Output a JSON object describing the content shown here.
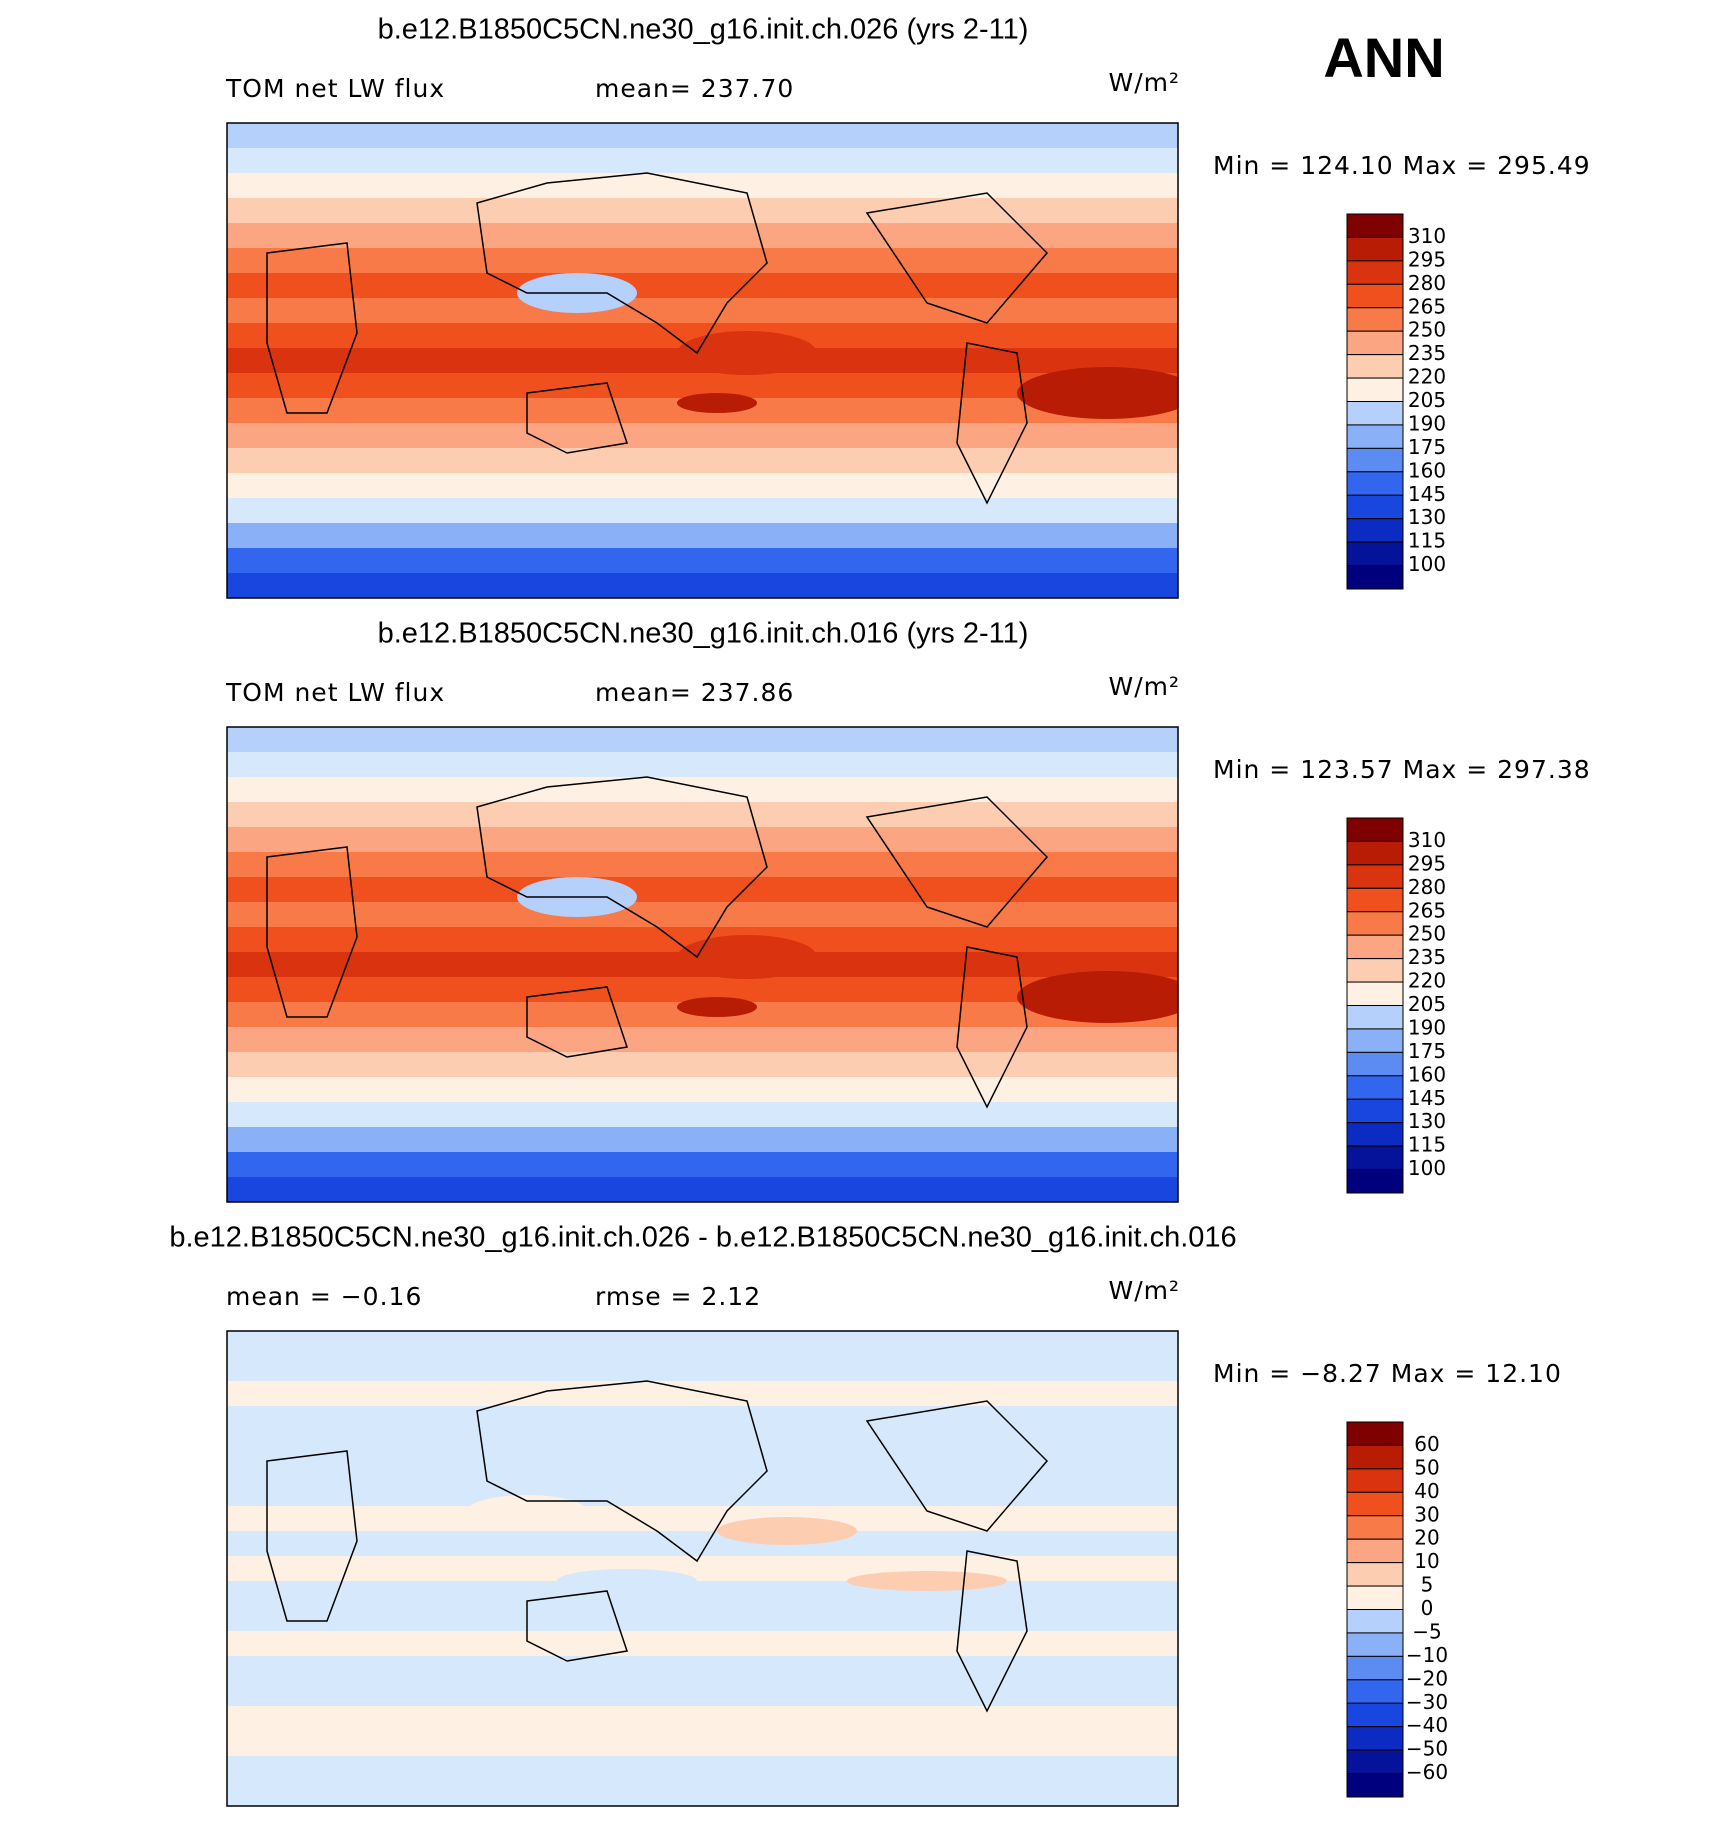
{
  "header": {
    "season": "ANN"
  },
  "panels": [
    {
      "kind": "field",
      "title": "b.e12.B1850C5CN.ne30_g16.init.ch.026 (yrs 2-11)",
      "left": "TOM net LW flux",
      "middle": "mean= 237.70",
      "units": "W/m²",
      "stats": "Min = 124.10 Max = 295.49",
      "levels": [
        "310",
        "295",
        "280",
        "265",
        "250",
        "235",
        "220",
        "205",
        "190",
        "175",
        "160",
        "145",
        "130",
        "115",
        "100"
      ]
    },
    {
      "kind": "field",
      "title": "b.e12.B1850C5CN.ne30_g16.init.ch.016 (yrs 2-11)",
      "left": "TOM net LW flux",
      "middle": "mean= 237.86",
      "units": "W/m²",
      "stats": "Min = 123.57 Max = 297.38",
      "levels": [
        "310",
        "295",
        "280",
        "265",
        "250",
        "235",
        "220",
        "205",
        "190",
        "175",
        "160",
        "145",
        "130",
        "115",
        "100"
      ]
    },
    {
      "kind": "diff",
      "title": "b.e12.B1850C5CN.ne30_g16.init.ch.026 - b.e12.B1850C5CN.ne30_g16.init.ch.016",
      "left": "mean =   −0.16",
      "middle": "rmse =    2.12",
      "units": "W/m²",
      "stats": "Min =   −8.27 Max =   12.10",
      "levels": [
        "60",
        "50",
        "40",
        "30",
        "20",
        "10",
        "5",
        "0",
        "−5",
        "−10",
        "−20",
        "−30",
        "−40",
        "−50",
        "−60"
      ]
    }
  ],
  "palette": [
    "#7f0000",
    "#b81c05",
    "#d9340f",
    "#f0501e",
    "#f87a48",
    "#fca582",
    "#fdcdb2",
    "#fef0e2",
    "#d6e8fb",
    "#b5d0fb",
    "#8ab0f7",
    "#5c8cf2",
    "#3366ee",
    "#1846de",
    "#0b2bc2",
    "#05129a",
    "#00007e"
  ]
}
